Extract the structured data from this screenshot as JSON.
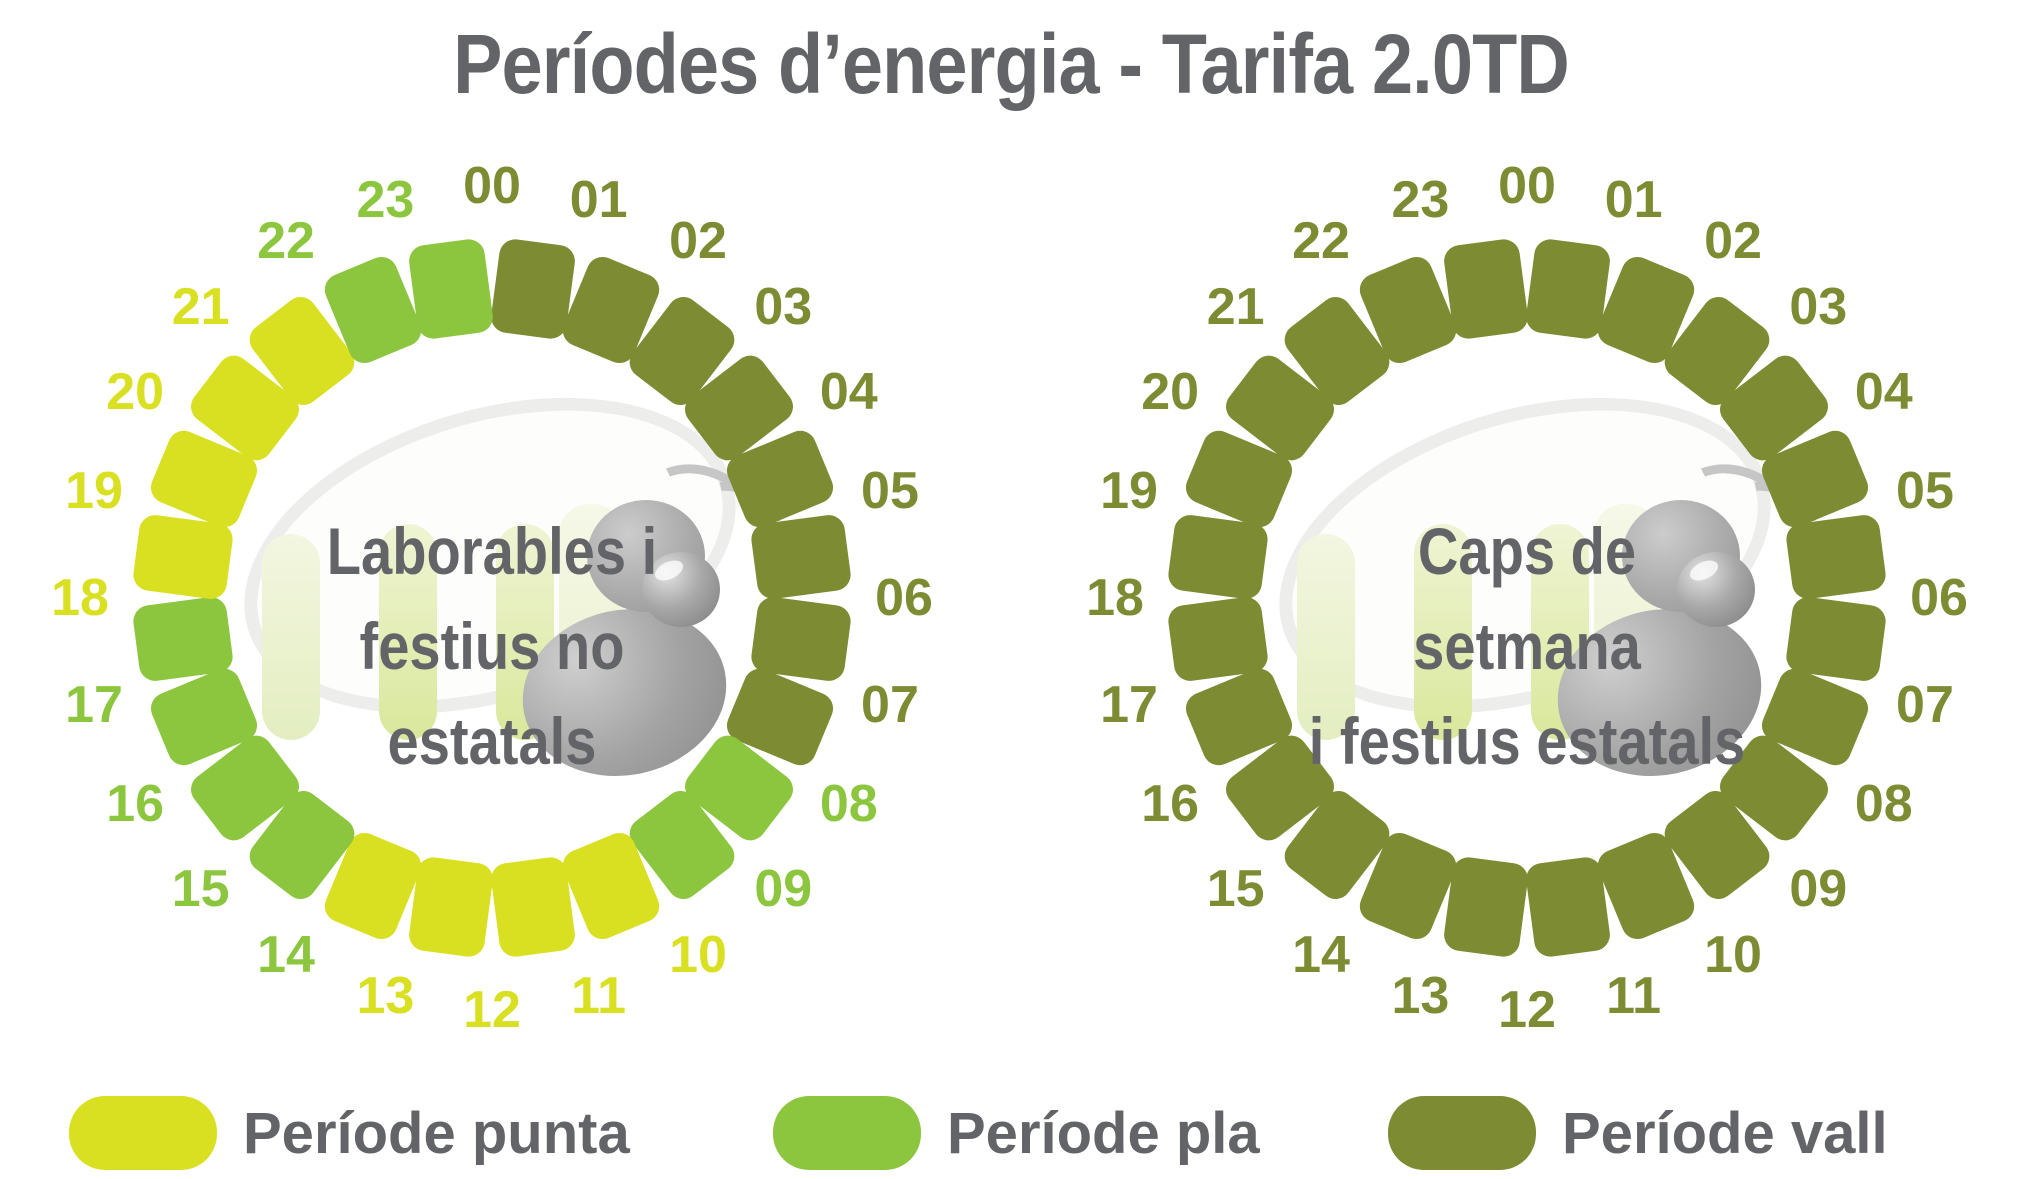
{
  "title": "Períodes d’energia - Tarifa 2.0TD",
  "colors": {
    "punta": "#d9e021",
    "pla": "#8cc63e",
    "vall": "#7d8b32",
    "text_gray": "#636468"
  },
  "legend": [
    {
      "period": "punta",
      "label": "Període punta"
    },
    {
      "period": "pla",
      "label": "Període pla"
    },
    {
      "period": "vall",
      "label": "Període vall"
    }
  ],
  "chart_data": {
    "type": "ring-schedule",
    "title": "Períodes d’energia - Tarifa 2.0TD",
    "unit": "hour",
    "hours": [
      "00",
      "01",
      "02",
      "03",
      "04",
      "05",
      "06",
      "07",
      "08",
      "09",
      "10",
      "11",
      "12",
      "13",
      "14",
      "15",
      "16",
      "17",
      "18",
      "19",
      "20",
      "21",
      "22",
      "23"
    ],
    "clocks": [
      {
        "name": "laborables",
        "caption": [
          "Laborables i",
          "festius no",
          "estatals"
        ],
        "schedule": {
          "vall": "00:00-08:00",
          "pla": "08:00-10:00, 14:00-18:00, 22:00-24:00",
          "punta": "10:00-14:00, 18:00-22:00"
        },
        "periods": [
          "vall",
          "vall",
          "vall",
          "vall",
          "vall",
          "vall",
          "vall",
          "vall",
          "pla",
          "pla",
          "punta",
          "punta",
          "punta",
          "punta",
          "pla",
          "pla",
          "pla",
          "pla",
          "punta",
          "punta",
          "punta",
          "punta",
          "pla",
          "pla"
        ]
      },
      {
        "name": "caps-de-setmana",
        "caption": [
          "Caps de",
          "setmana",
          "i festius estatals"
        ],
        "schedule": {
          "vall": "00:00-24:00"
        },
        "periods": [
          "vall",
          "vall",
          "vall",
          "vall",
          "vall",
          "vall",
          "vall",
          "vall",
          "vall",
          "vall",
          "vall",
          "vall",
          "vall",
          "vall",
          "vall",
          "vall",
          "vall",
          "vall",
          "vall",
          "vall",
          "vall",
          "vall",
          "vall",
          "vall"
        ]
      }
    ]
  }
}
